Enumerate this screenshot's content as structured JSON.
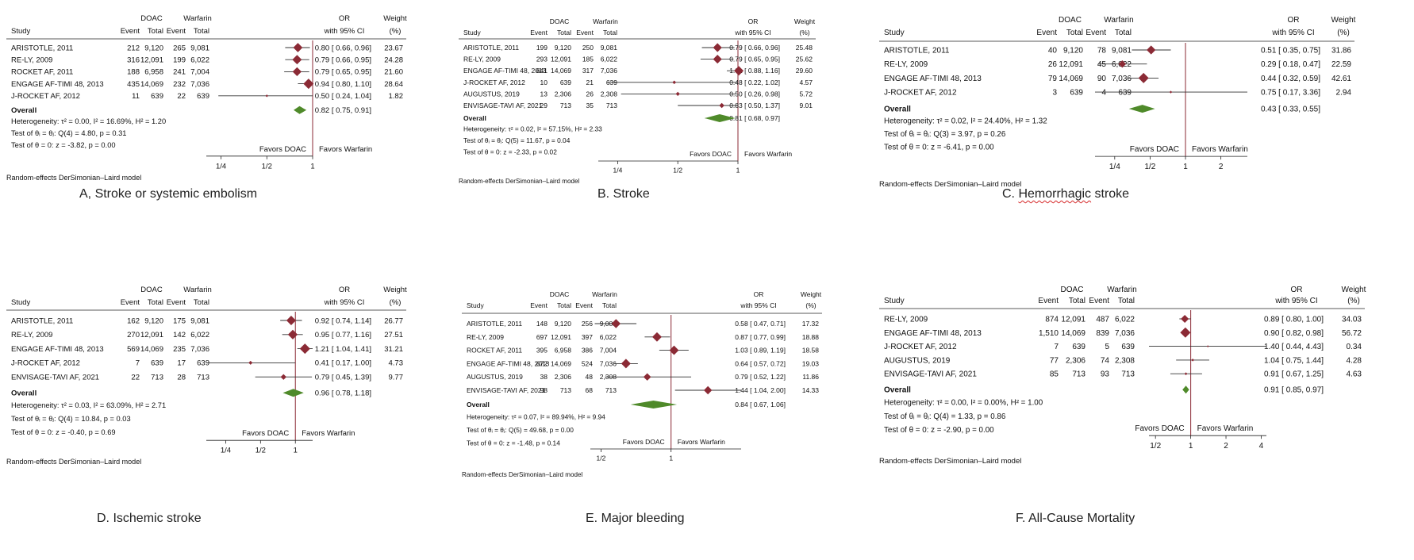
{
  "colors": {
    "study_marker": "#8b2a35",
    "overall_diamond": "#4f8a2a",
    "no_effect_line": "#8b2a35",
    "favors_label": "#c0392b",
    "ci_line": "#333333"
  },
  "chart_data": [
    {
      "type": "forest",
      "caption": "A, Stroke or systemic embolism",
      "columns": {
        "study": "Study",
        "group1": "DOAC",
        "group2": "Warfarin",
        "event": "Event",
        "total": "Total",
        "or": "OR",
        "ci": "with 95% CI",
        "weight": "Weight",
        "weight_unit": "(%)"
      },
      "studies": [
        {
          "name": "ARISTOTLE, 2011",
          "e1": "212",
          "t1": "9,120",
          "e2": "265",
          "t2": "9,081",
          "or": 0.8,
          "lo": 0.66,
          "hi": 0.96,
          "ci_text": "0.80 [ 0.66, 0.96]",
          "weight": 23.67,
          "weight_text": "23.67"
        },
        {
          "name": "RE-LY, 2009",
          "e1": "316",
          "t1": "12,091",
          "e2": "199",
          "t2": "6,022",
          "or": 0.79,
          "lo": 0.66,
          "hi": 0.95,
          "ci_text": "0.79 [ 0.66, 0.95]",
          "weight": 24.28,
          "weight_text": "24.28"
        },
        {
          "name": "ROCKET AF, 2011",
          "e1": "188",
          "t1": "6,958",
          "e2": "241",
          "t2": "7,004",
          "or": 0.79,
          "lo": 0.65,
          "hi": 0.95,
          "ci_text": "0.79 [ 0.65, 0.95]",
          "weight": 21.6,
          "weight_text": "21.60"
        },
        {
          "name": "ENGAGE AF-TIMI 48, 2013",
          "e1": "435",
          "t1": "14,069",
          "e2": "232",
          "t2": "7,036",
          "or": 0.94,
          "lo": 0.8,
          "hi": 1.1,
          "ci_text": "0.94 [ 0.80, 1.10]",
          "weight": 28.64,
          "weight_text": "28.64"
        },
        {
          "name": "J-ROCKET AF, 2012",
          "e1": "11",
          "t1": "639",
          "e2": "22",
          "t2": "639",
          "or": 0.5,
          "lo": 0.24,
          "hi": 1.04,
          "ci_text": "0.50 [ 0.24, 1.04]",
          "weight": 1.82,
          "weight_text": "1.82"
        }
      ],
      "overall": {
        "label": "Overall",
        "or": 0.82,
        "lo": 0.75,
        "hi": 0.91,
        "ci_text": "0.82 [ 0.75, 0.91]"
      },
      "stats": [
        "Heterogeneity: τ² = 0.00, I² = 16.69%, H² = 1.20",
        "Test of θᵢ = θⱼ: Q(4) = 4.80, p = 0.31",
        "Test of θ = 0: z = -3.82, p = 0.00"
      ],
      "favors_left": "Favors DOAC",
      "favors_right": "Favors Warfarin",
      "axis_min": 0.2,
      "axis_max": 1.0,
      "ticks": [
        {
          "value": 0.25,
          "label": "1/4"
        },
        {
          "value": 0.5,
          "label": "1/2"
        },
        {
          "value": 1,
          "label": "1"
        }
      ],
      "model": "Random-effects DerSimonian–Laird model"
    },
    {
      "type": "forest",
      "caption": "B. Stroke",
      "columns": {
        "study": "Study",
        "group1": "DOAC",
        "group2": "Warfarin",
        "event": "Event",
        "total": "Total",
        "or": "OR",
        "ci": "with 95% CI",
        "weight": "Weight",
        "weight_unit": "(%)"
      },
      "studies": [
        {
          "name": "ARISTOTLE, 2011",
          "e1": "199",
          "t1": "9,120",
          "e2": "250",
          "t2": "9,081",
          "or": 0.79,
          "lo": 0.66,
          "hi": 0.96,
          "ci_text": "0.79 [ 0.66, 0.96]",
          "weight": 25.48,
          "weight_text": "25.48"
        },
        {
          "name": "RE-LY, 2009",
          "e1": "293",
          "t1": "12,091",
          "e2": "185",
          "t2": "6,022",
          "or": 0.79,
          "lo": 0.65,
          "hi": 0.95,
          "ci_text": "0.79 [ 0.65, 0.95]",
          "weight": 25.62,
          "weight_text": "25.62"
        },
        {
          "name": "ENGAGE AF-TIMI 48, 2013",
          "e1": "641",
          "t1": "14,069",
          "e2": "317",
          "t2": "7,036",
          "or": 1.01,
          "lo": 0.88,
          "hi": 1.16,
          "ci_text": "1.01 [ 0.88, 1.16]",
          "weight": 29.6,
          "weight_text": "29.60"
        },
        {
          "name": "J-ROCKET AF, 2012",
          "e1": "10",
          "t1": "639",
          "e2": "21",
          "t2": "639",
          "or": 0.48,
          "lo": 0.22,
          "hi": 1.02,
          "ci_text": "0.48 [ 0.22, 1.02]",
          "weight": 4.57,
          "weight_text": "4.57"
        },
        {
          "name": "AUGUSTUS, 2019",
          "e1": "13",
          "t1": "2,306",
          "e2": "26",
          "t2": "2,308",
          "or": 0.5,
          "lo": 0.26,
          "hi": 0.98,
          "ci_text": "0.50 [ 0.26, 0.98]",
          "weight": 5.72,
          "weight_text": "5.72"
        },
        {
          "name": "ENVISAGE-TAVI AF, 2021",
          "e1": "29",
          "t1": "713",
          "e2": "35",
          "t2": "713",
          "or": 0.83,
          "lo": 0.5,
          "hi": 1.37,
          "ci_text": "0.83 [ 0.50, 1.37]",
          "weight": 9.01,
          "weight_text": "9.01"
        }
      ],
      "overall": {
        "label": "Overall",
        "or": 0.81,
        "lo": 0.68,
        "hi": 0.97,
        "ci_text": "0.81 [ 0.68, 0.97]"
      },
      "stats": [
        "Heterogeneity: τ² = 0.02, I² = 57.15%, H² = 2.33",
        "Test of θᵢ = θⱼ: Q(5) = 11.67, p = 0.04",
        "Test of θ = 0: z = -2.33, p = 0.02"
      ],
      "favors_left": "Favors DOAC",
      "favors_right": "Favors Warfarin",
      "axis_min": 0.2,
      "axis_max": 1.0,
      "ticks": [
        {
          "value": 0.25,
          "label": "1/4"
        },
        {
          "value": 0.5,
          "label": "1/2"
        },
        {
          "value": 1,
          "label": "1"
        }
      ],
      "model": "Random-effects DerSimonian–Laird model"
    },
    {
      "type": "forest",
      "caption": "C. Hemorrhagic stroke",
      "caption_prefix": "C. ",
      "caption_word": "Hemorrhagic",
      "caption_suffix": " stroke",
      "columns": {
        "study": "Study",
        "group1": "DOAC",
        "group2": "Warfarin",
        "event": "Event",
        "total": "Total",
        "or": "OR",
        "ci": "with 95% CI",
        "weight": "Weight",
        "weight_unit": "(%)"
      },
      "studies": [
        {
          "name": "ARISTOTLE, 2011",
          "e1": "40",
          "t1": "9,120",
          "e2": "78",
          "t2": "9,081",
          "or": 0.51,
          "lo": 0.35,
          "hi": 0.75,
          "ci_text": "0.51 [ 0.35, 0.75]",
          "weight": 31.86,
          "weight_text": "31.86"
        },
        {
          "name": "RE-LY, 2009",
          "e1": "26",
          "t1": "12,091",
          "e2": "45",
          "t2": "6,022",
          "or": 0.29,
          "lo": 0.18,
          "hi": 0.47,
          "ci_text": "0.29 [ 0.18, 0.47]",
          "weight": 22.59,
          "weight_text": "22.59"
        },
        {
          "name": "ENGAGE AF-TIMI 48, 2013",
          "e1": "79",
          "t1": "14,069",
          "e2": "90",
          "t2": "7,036",
          "or": 0.44,
          "lo": 0.32,
          "hi": 0.59,
          "ci_text": "0.44 [ 0.32, 0.59]",
          "weight": 42.61,
          "weight_text": "42.61"
        },
        {
          "name": "J-ROCKET AF, 2012",
          "e1": "3",
          "t1": "639",
          "e2": "4",
          "t2": "639",
          "or": 0.75,
          "lo": 0.17,
          "hi": 3.36,
          "ci_text": "0.75 [ 0.17, 3.36]",
          "weight": 2.94,
          "weight_text": "2.94"
        }
      ],
      "overall": {
        "label": "Overall",
        "or": 0.43,
        "lo": 0.33,
        "hi": 0.55,
        "ci_text": "0.43 [ 0.33, 0.55]"
      },
      "stats": [
        "Heterogeneity: τ² = 0.02, I² = 24.40%, H² = 1.32",
        "Test of θᵢ = θⱼ: Q(3) = 3.97, p = 0.26",
        "Test of θ = 0: z = -6.41, p = 0.00"
      ],
      "favors_left": "Favors DOAC",
      "favors_right": "Favors Warfarin",
      "axis_min": 0.17,
      "axis_max": 3.36,
      "ticks": [
        {
          "value": 0.25,
          "label": "1/4"
        },
        {
          "value": 0.5,
          "label": "1/2"
        },
        {
          "value": 1,
          "label": "1"
        },
        {
          "value": 2,
          "label": "2"
        }
      ],
      "model": "Random-effects DerSimonian–Laird model"
    },
    {
      "type": "forest",
      "caption": "D. Ischemic stroke",
      "columns": {
        "study": "Study",
        "group1": "DOAC",
        "group2": "Warfarin",
        "event": "Event",
        "total": "Total",
        "or": "OR",
        "ci": "with 95% CI",
        "weight": "Weight",
        "weight_unit": "(%)"
      },
      "studies": [
        {
          "name": "ARISTOTLE, 2011",
          "e1": "162",
          "t1": "9,120",
          "e2": "175",
          "t2": "9,081",
          "or": 0.92,
          "lo": 0.74,
          "hi": 1.14,
          "ci_text": "0.92 [ 0.74, 1.14]",
          "weight": 26.77,
          "weight_text": "26.77"
        },
        {
          "name": "RE-LY, 2009",
          "e1": "270",
          "t1": "12,091",
          "e2": "142",
          "t2": "6,022",
          "or": 0.95,
          "lo": 0.77,
          "hi": 1.16,
          "ci_text": "0.95 [ 0.77, 1.16]",
          "weight": 27.51,
          "weight_text": "27.51"
        },
        {
          "name": "ENGAGE AF-TIMI 48, 2013",
          "e1": "569",
          "t1": "14,069",
          "e2": "235",
          "t2": "7,036",
          "or": 1.21,
          "lo": 1.04,
          "hi": 1.41,
          "ci_text": "1.21 [ 1.04, 1.41]",
          "weight": 31.21,
          "weight_text": "31.21"
        },
        {
          "name": "J-ROCKET AF, 2012",
          "e1": "7",
          "t1": "639",
          "e2": "17",
          "t2": "639",
          "or": 0.41,
          "lo": 0.17,
          "hi": 1.0,
          "ci_text": "0.41 [ 0.17, 1.00]",
          "weight": 4.73,
          "weight_text": "4.73"
        },
        {
          "name": "ENVISAGE-TAVI AF, 2021",
          "e1": "22",
          "t1": "713",
          "e2": "28",
          "t2": "713",
          "or": 0.79,
          "lo": 0.45,
          "hi": 1.39,
          "ci_text": "0.79 [ 0.45, 1.39]",
          "weight": 9.77,
          "weight_text": "9.77"
        }
      ],
      "overall": {
        "label": "Overall",
        "or": 0.96,
        "lo": 0.78,
        "hi": 1.18,
        "ci_text": "0.96 [ 0.78, 1.18]"
      },
      "stats": [
        "Heterogeneity: τ² = 0.03, I² = 63.09%, H² = 2.71",
        "Test of θᵢ = θⱼ: Q(4) = 10.84, p = 0.03",
        "Test of θ = 0: z = -0.40, p = 0.69"
      ],
      "favors_left": "Favors DOAC",
      "favors_right": "Favors Warfarin",
      "axis_min": 0.17,
      "axis_max": 1.41,
      "ticks": [
        {
          "value": 0.25,
          "label": "1/4"
        },
        {
          "value": 0.5,
          "label": "1/2"
        },
        {
          "value": 1,
          "label": "1"
        }
      ],
      "model": "Random-effects DerSimonian–Laird model"
    },
    {
      "type": "forest",
      "caption": "E. Major bleeding",
      "columns": {
        "study": "Study",
        "group1": "DOAC",
        "group2": "Warfarin",
        "event": "Event",
        "total": "Total",
        "or": "OR",
        "ci": "with 95% CI",
        "weight": "Weight",
        "weight_unit": "(%)"
      },
      "studies": [
        {
          "name": "ARISTOTLE, 2011",
          "e1": "148",
          "t1": "9,120",
          "e2": "256",
          "t2": "9,081",
          "or": 0.58,
          "lo": 0.47,
          "hi": 0.71,
          "ci_text": "0.58 [ 0.47, 0.71]",
          "weight": 17.32,
          "weight_text": "17.32"
        },
        {
          "name": "RE-LY, 2009",
          "e1": "697",
          "t1": "12,091",
          "e2": "397",
          "t2": "6,022",
          "or": 0.87,
          "lo": 0.77,
          "hi": 0.99,
          "ci_text": "0.87 [ 0.77, 0.99]",
          "weight": 18.88,
          "weight_text": "18.88"
        },
        {
          "name": "ROCKET AF, 2011",
          "e1": "395",
          "t1": "6,958",
          "e2": "386",
          "t2": "7,004",
          "or": 1.03,
          "lo": 0.89,
          "hi": 1.19,
          "ci_text": "1.03 [ 0.89, 1.19]",
          "weight": 18.58,
          "weight_text": "18.58"
        },
        {
          "name": "ENGAGE AF-TIMI 48, 2013",
          "e1": "672",
          "t1": "14,069",
          "e2": "524",
          "t2": "7,036",
          "or": 0.64,
          "lo": 0.57,
          "hi": 0.72,
          "ci_text": "0.64 [ 0.57, 0.72]",
          "weight": 19.03,
          "weight_text": "19.03"
        },
        {
          "name": "AUGUSTUS, 2019",
          "e1": "38",
          "t1": "2,306",
          "e2": "48",
          "t2": "2,308",
          "or": 0.79,
          "lo": 0.52,
          "hi": 1.22,
          "ci_text": "0.79 [ 0.52, 1.22]",
          "weight": 11.86,
          "weight_text": "11.86"
        },
        {
          "name": "ENVISAGE-TAVI AF, 2021",
          "e1": "98",
          "t1": "713",
          "e2": "68",
          "t2": "713",
          "or": 1.44,
          "lo": 1.04,
          "hi": 2.0,
          "ci_text": "1.44 [ 1.04, 2.00]",
          "weight": 14.33,
          "weight_text": "14.33"
        }
      ],
      "overall": {
        "label": "Overall",
        "or": 0.84,
        "lo": 0.67,
        "hi": 1.06,
        "ci_text": "0.84 [ 0.67, 1.06]"
      },
      "stats": [
        "Heterogeneity: τ² = 0.07, I² = 89.94%, H² = 9.94",
        "Test of θᵢ = θⱼ: Q(5) = 49.68, p = 0.00",
        "Test of θ = 0: z = -1.48, p = 0.14"
      ],
      "favors_left": "Favors DOAC",
      "favors_right": "Favors Warfarin",
      "axis_min": 0.45,
      "axis_max": 2.0,
      "ticks": [
        {
          "value": 0.5,
          "label": "1/2"
        },
        {
          "value": 1,
          "label": "1"
        }
      ],
      "model": "Random-effects DerSimonian–Laird model"
    },
    {
      "type": "forest",
      "caption": "F. All-Cause Mortality",
      "columns": {
        "study": "Study",
        "group1": "DOAC",
        "group2": "Warfarin",
        "event": "Event",
        "total": "Total",
        "or": "OR",
        "ci": "with 95% CI",
        "weight": "Weight",
        "weight_unit": "(%)"
      },
      "studies": [
        {
          "name": "RE-LY, 2009",
          "e1": "874",
          "t1": "12,091",
          "e2": "487",
          "t2": "6,022",
          "or": 0.89,
          "lo": 0.8,
          "hi": 1.0,
          "ci_text": "0.89 [ 0.80, 1.00]",
          "weight": 34.03,
          "weight_text": "34.03"
        },
        {
          "name": "ENGAGE AF-TIMI 48, 2013",
          "e1": "1,510",
          "t1": "14,069",
          "e2": "839",
          "t2": "7,036",
          "or": 0.9,
          "lo": 0.82,
          "hi": 0.98,
          "ci_text": "0.90 [ 0.82, 0.98]",
          "weight": 56.72,
          "weight_text": "56.72"
        },
        {
          "name": "J-ROCKET AF, 2012",
          "e1": "7",
          "t1": "639",
          "e2": "5",
          "t2": "639",
          "or": 1.4,
          "lo": 0.44,
          "hi": 4.43,
          "ci_text": "1.40 [ 0.44, 4.43]",
          "weight": 0.34,
          "weight_text": "0.34"
        },
        {
          "name": "AUGUSTUS, 2019",
          "e1": "77",
          "t1": "2,306",
          "e2": "74",
          "t2": "2,308",
          "or": 1.04,
          "lo": 0.75,
          "hi": 1.44,
          "ci_text": "1.04 [ 0.75, 1.44]",
          "weight": 4.28,
          "weight_text": "4.28"
        },
        {
          "name": "ENVISAGE-TAVI AF, 2021",
          "e1": "85",
          "t1": "713",
          "e2": "93",
          "t2": "713",
          "or": 0.91,
          "lo": 0.67,
          "hi": 1.25,
          "ci_text": "0.91 [ 0.67, 1.25]",
          "weight": 4.63,
          "weight_text": "4.63"
        }
      ],
      "overall": {
        "label": "Overall",
        "or": 0.91,
        "lo": 0.85,
        "hi": 0.97,
        "ci_text": "0.91 [ 0.85, 0.97]"
      },
      "stats": [
        "Heterogeneity: τ² = 0.00, I² = 0.00%, H² = 1.00",
        "Test of θᵢ = θⱼ: Q(4) = 1.33, p = 0.86",
        "Test of θ = 0: z = -2.90, p = 0.00"
      ],
      "favors_left": "Favors DOAC",
      "favors_right": "Favors Warfarin",
      "axis_min": 0.44,
      "axis_max": 4.43,
      "ticks": [
        {
          "value": 0.5,
          "label": "1/2"
        },
        {
          "value": 1,
          "label": "1"
        },
        {
          "value": 2,
          "label": "2"
        },
        {
          "value": 4,
          "label": "4"
        }
      ],
      "model": "Random-effects DerSimonian–Laird model"
    }
  ]
}
